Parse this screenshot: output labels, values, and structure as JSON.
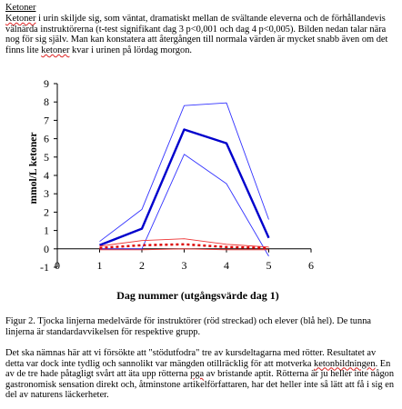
{
  "document": {
    "heading": "Ketoner",
    "intro": {
      "term": "Ketoner",
      "text": " i urin skiljde sig, som väntat, dramatiskt mellan de svältande eleverna och de förhållandevis välnärda instruktörerna (t-test signifikant dag 3 p<0,001 och dag 4 p<0,005). Bilden nedan talar nära nog för sig själv. Man kan konstatera att återgången till normala värden är mycket snabb även om det finns lite ",
      "term2": "ketoner",
      "text2": " kvar i urinen på lördag morgon."
    },
    "caption": "Figur 2. Tjocka linjerna medelvärde för instruktörer (röd streckad) och elever (blå hel). De tunna linjerna är standardavvikelsen för respektive grupp.",
    "closing": {
      "text1": "Det ska nämnas här att vi försökte att \"stödutfodra\" tre av kursdeltagarna med rötter. Resultatet av detta var dock inte tydlig och sannolikt var mängden otillräcklig för att motverka ",
      "term": "ketonbildningen",
      "text2": ". En av de tre hade påtagligt svårt att äta upp rötterna ",
      "term2": "pga",
      "text3": " av bristande aptit. Rötterna är ju heller inte någon gastronomisk sensation direkt och, åtminstone artikelförfattaren, har det heller inte så lätt att få i sig en del av naturens läckerheter."
    }
  },
  "chart_data": {
    "type": "line",
    "ylabel": "mmol/L ketoner",
    "xlabel": "Dag nummer (utgångsvärde dag 1)",
    "xlim": [
      0,
      6
    ],
    "ylim": [
      -1,
      9
    ],
    "x_ticks": [
      "0",
      "1",
      "2",
      "3",
      "4",
      "5",
      "6"
    ],
    "y_ticks": [
      "-1",
      "0",
      "1",
      "2",
      "3",
      "4",
      "5",
      "6",
      "7",
      "8",
      "9"
    ],
    "grid": false,
    "legend": "none",
    "series": [
      {
        "x": [
          1,
          2,
          3,
          4,
          5
        ],
        "values": [
          0.2,
          1.1,
          6.5,
          5.75,
          0.6
        ],
        "color": "#0000cc",
        "style": "solid",
        "weight": "thick"
      },
      {
        "x": [
          1,
          2,
          3,
          4,
          5
        ],
        "values": [
          0.4,
          2.15,
          7.8,
          7.95,
          1.6
        ],
        "color": "#3333ff",
        "style": "solid",
        "weight": "thin"
      },
      {
        "x": [
          1,
          2,
          3,
          4,
          5
        ],
        "values": [
          0.0,
          0.0,
          5.15,
          3.55,
          -0.4
        ],
        "color": "#3333ff",
        "style": "solid",
        "weight": "thin"
      },
      {
        "x": [
          1,
          2,
          3,
          4,
          5
        ],
        "values": [
          0.05,
          0.2,
          0.25,
          0.1,
          0.05
        ],
        "color": "#dd0000",
        "style": "dashed",
        "weight": "thick"
      },
      {
        "x": [
          1,
          2,
          3,
          4,
          5
        ],
        "values": [
          0.15,
          0.45,
          0.55,
          0.25,
          0.1
        ],
        "color": "#ee3333",
        "style": "solid",
        "weight": "thin"
      },
      {
        "x": [
          1,
          2,
          3,
          4,
          5
        ],
        "values": [
          -0.05,
          -0.05,
          0.0,
          -0.05,
          -0.05
        ],
        "color": "#ee3333",
        "style": "solid",
        "weight": "thin"
      }
    ]
  }
}
